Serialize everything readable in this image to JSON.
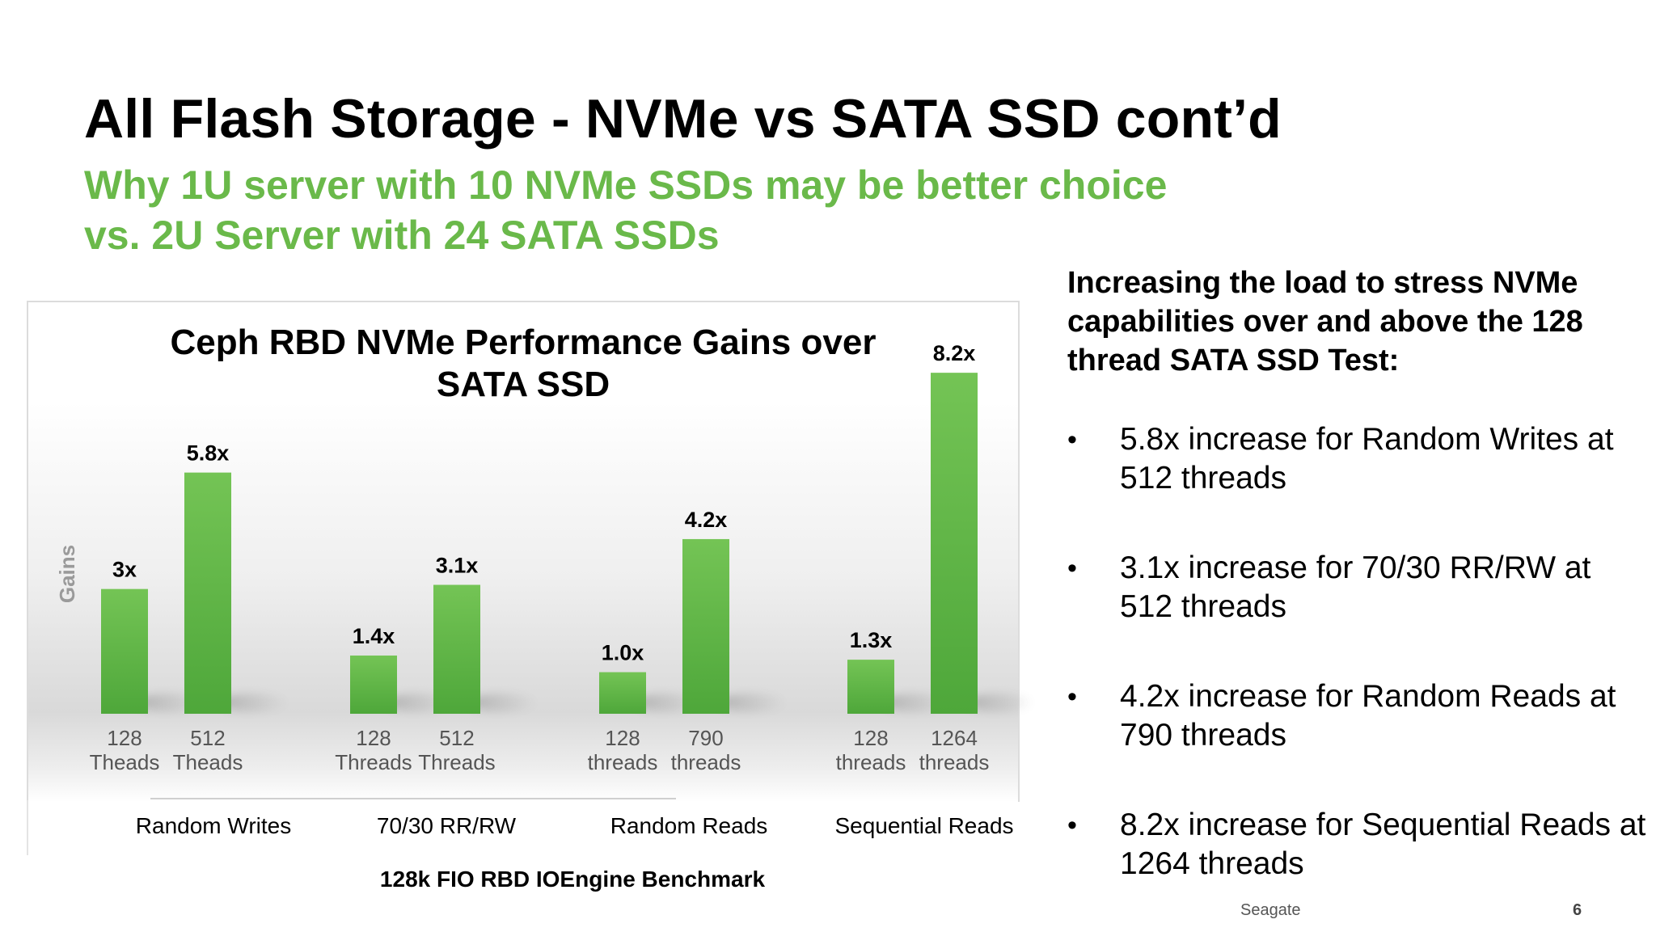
{
  "slide": {
    "title": "All Flash Storage - NVMe vs SATA SSD cont’d",
    "subtitle_line1": "Why 1U server with 10 NVMe SSDs may be better choice",
    "subtitle_line2": "vs. 2U Server with 24 SATA SSDs",
    "right_heading": "Increasing the load to stress NVMe capabilities over and above the 128 thread SATA SSD Test:",
    "bullets": [
      "5.8x increase for Random Writes at 512 threads",
      "3.1x increase for 70/30 RR/RW at 512 threads",
      "4.2x increase for Random Reads at 790 threads",
      "8.2x increase for Sequential Reads at 1264 threads"
    ],
    "footer_brand": "Seagate",
    "page_number": "6"
  },
  "colors": {
    "subtitle": "#6ab94a",
    "bar_top": "#74c455",
    "bar_bottom": "#4ea73a",
    "tick_text": "#555555"
  },
  "chart_data": {
    "type": "bar",
    "title": "Ceph RBD NVMe Performance Gains over SATA SSD",
    "ylabel": "Gains",
    "xlabel": "128k FIO RBD IOEngine Benchmark",
    "ylim": [
      0,
      9
    ],
    "grid": false,
    "legend": "none",
    "groups": [
      {
        "name": "Random Writes",
        "bars": [
          {
            "tick": [
              "128",
              "Theads"
            ],
            "value": 3.0,
            "label": "3x"
          },
          {
            "tick": [
              "512",
              "Theads"
            ],
            "value": 5.8,
            "label": "5.8x"
          }
        ]
      },
      {
        "name": "70/30 RR/RW",
        "bars": [
          {
            "tick": [
              "128",
              "Threads"
            ],
            "value": 1.4,
            "label": "1.4x"
          },
          {
            "tick": [
              "512",
              "Threads"
            ],
            "value": 3.1,
            "label": "3.1x"
          }
        ]
      },
      {
        "name": "Random Reads",
        "bars": [
          {
            "tick": [
              "128",
              "threads"
            ],
            "value": 1.0,
            "label": "1.0x"
          },
          {
            "tick": [
              "790",
              "threads"
            ],
            "value": 4.2,
            "label": "4.2x"
          }
        ]
      },
      {
        "name": "Sequential Reads",
        "bars": [
          {
            "tick": [
              "128",
              "threads"
            ],
            "value": 1.3,
            "label": "1.3x"
          },
          {
            "tick": [
              "1264",
              "threads"
            ],
            "value": 8.2,
            "label": "8.2x"
          }
        ]
      }
    ]
  }
}
